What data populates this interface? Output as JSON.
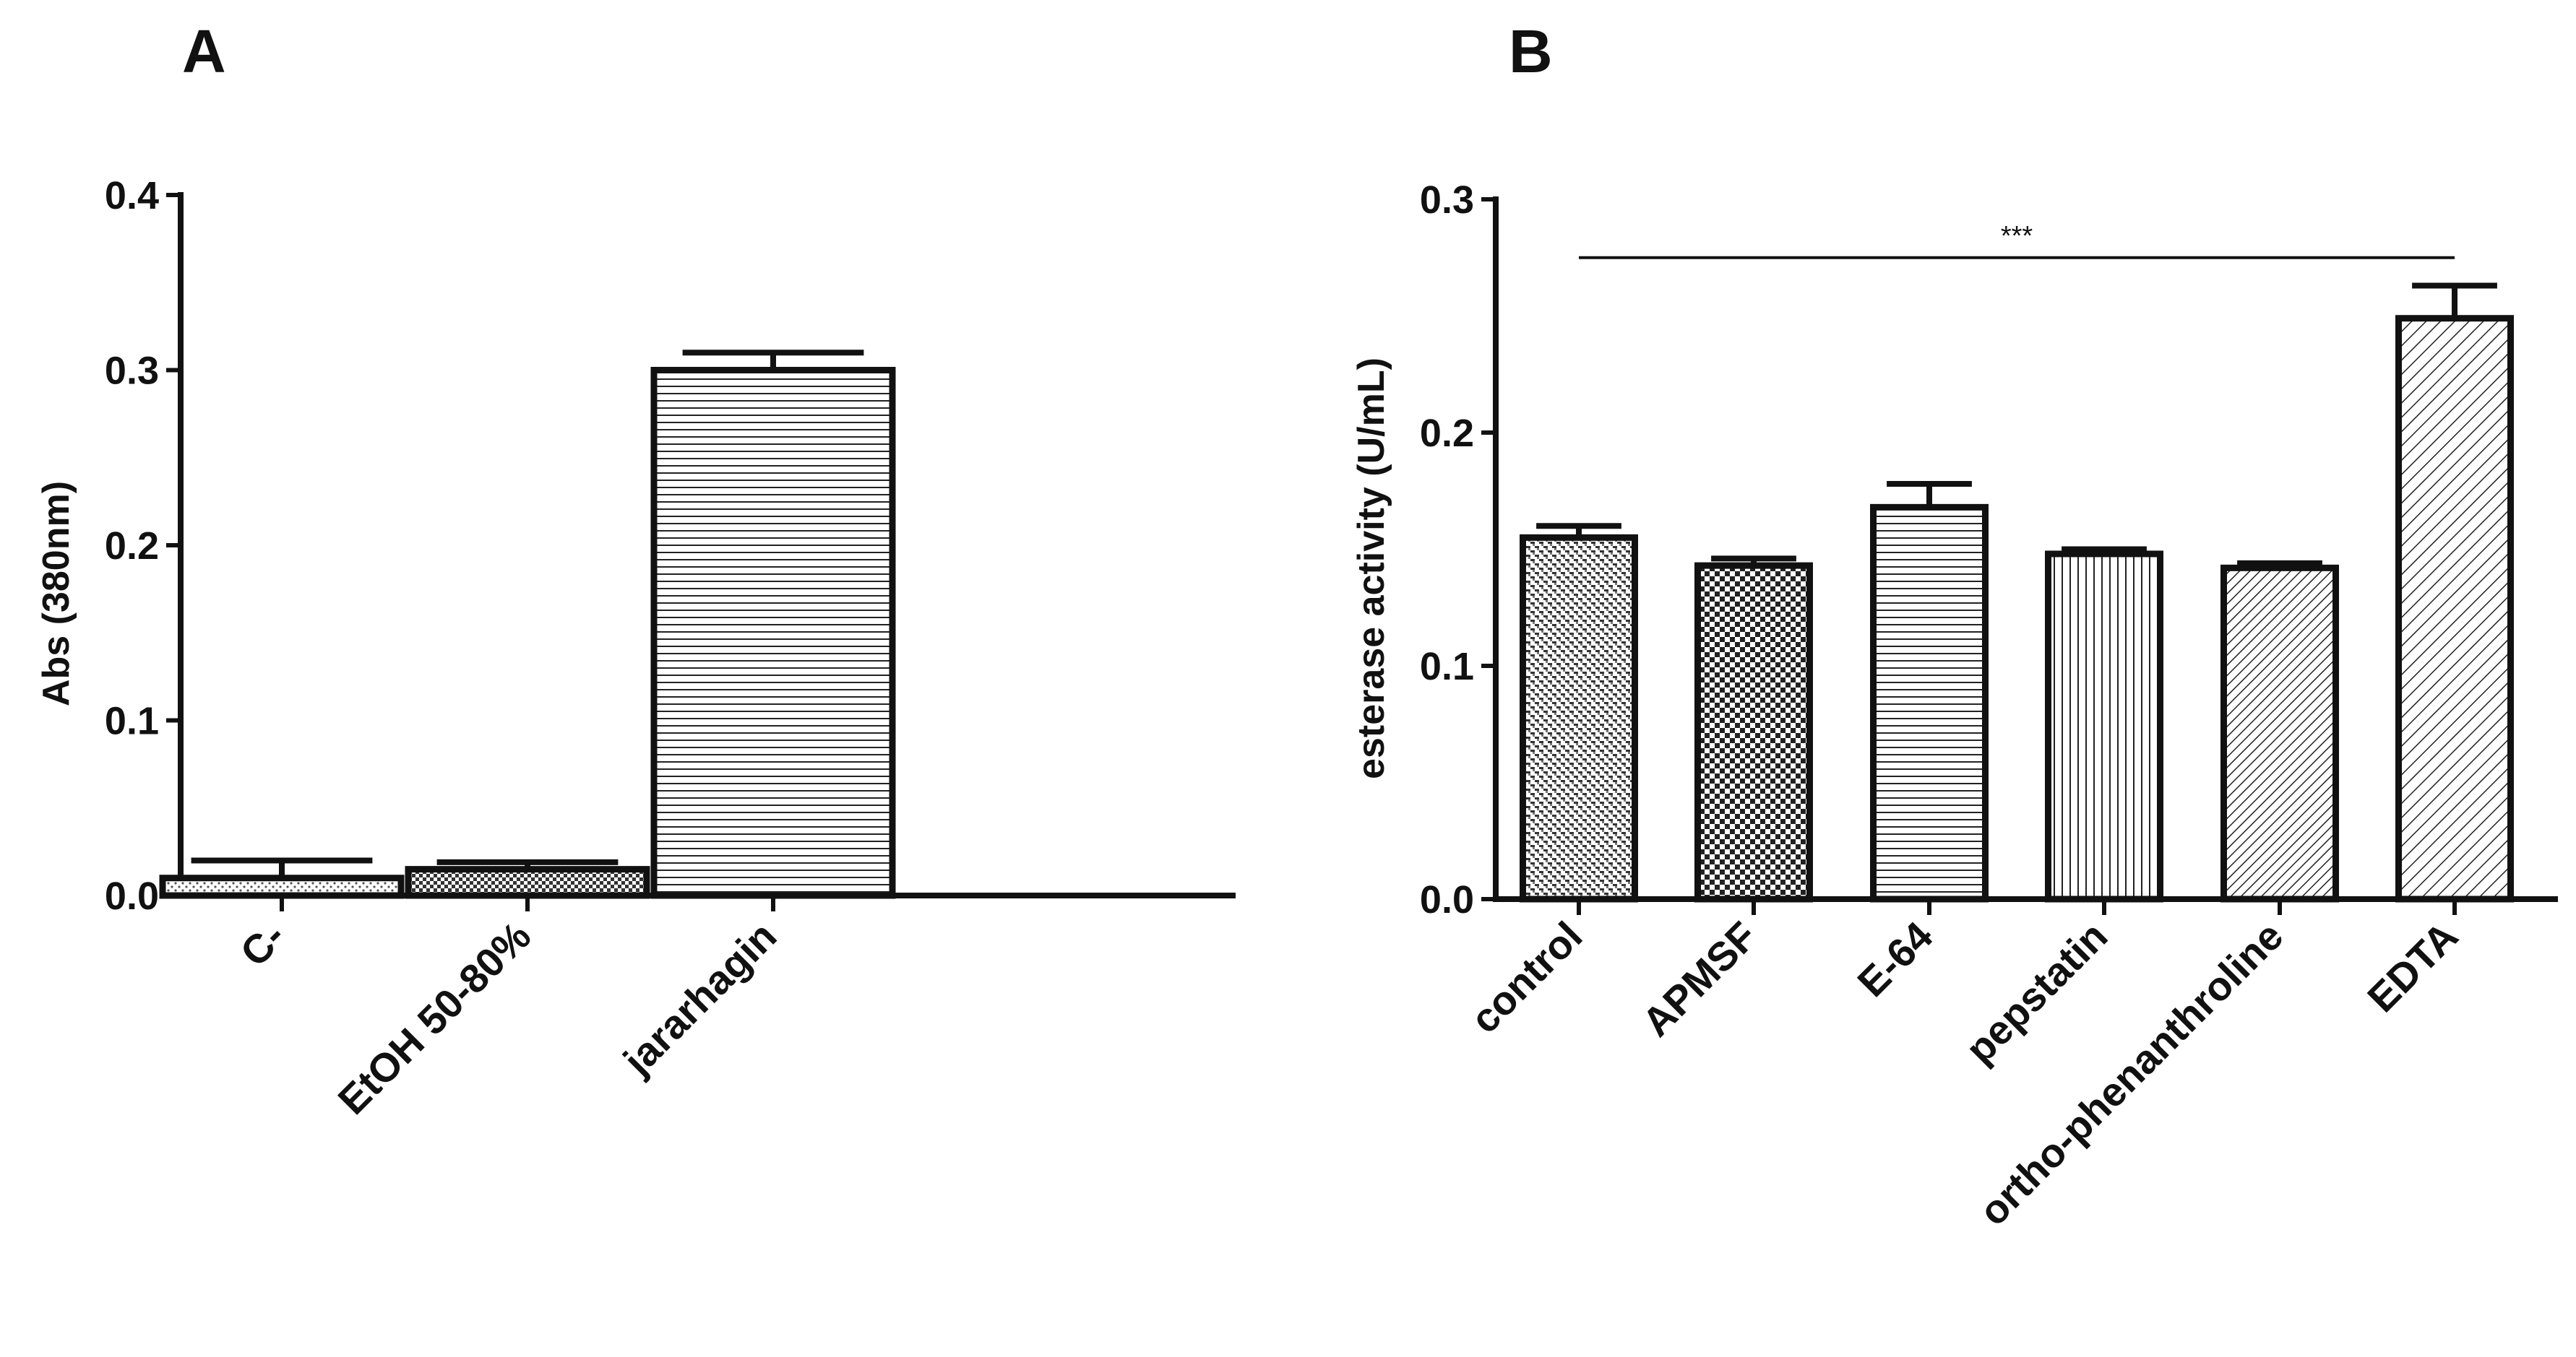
{
  "chart_data": [
    {
      "panel": "A",
      "type": "bar",
      "title": "",
      "xlabel": "",
      "ylabel": "Abs (380nm)",
      "ylim": [
        0,
        0.4
      ],
      "yticks": [
        0.0,
        0.1,
        0.2,
        0.3,
        0.4
      ],
      "ytick_labels": [
        "0.0",
        "0.1",
        "0.2",
        "0.3",
        "0.4"
      ],
      "grid": false,
      "categories": [
        "C-",
        "EtOH 50-80%",
        "jararhagin"
      ],
      "values": [
        0.01,
        0.015,
        0.3
      ],
      "errors": [
        0.01,
        0.004,
        0.01
      ],
      "patterns": [
        "dots",
        "check-small",
        "hlines"
      ]
    },
    {
      "panel": "B",
      "type": "bar",
      "title": "",
      "xlabel": "",
      "ylabel": "esterase activity (U/mL)",
      "ylim": [
        0,
        0.3
      ],
      "yticks": [
        0.0,
        0.1,
        0.2,
        0.3
      ],
      "ytick_labels": [
        "0.0",
        "0.1",
        "0.2",
        "0.3"
      ],
      "grid": false,
      "categories": [
        "control",
        "APMSF",
        "E-64",
        "pepstatin",
        "ortho-phenanthroline",
        "EDTA"
      ],
      "values": [
        0.155,
        0.143,
        0.168,
        0.148,
        0.142,
        0.249
      ],
      "errors": [
        0.005,
        0.003,
        0.01,
        0.002,
        0.002,
        0.014
      ],
      "patterns": [
        "weave",
        "check",
        "hlines",
        "vlines",
        "diag-dense",
        "diag"
      ],
      "annotations": [
        {
          "text": "***",
          "from_category": "control",
          "to_category": "EDTA",
          "y": 0.275
        }
      ]
    }
  ]
}
